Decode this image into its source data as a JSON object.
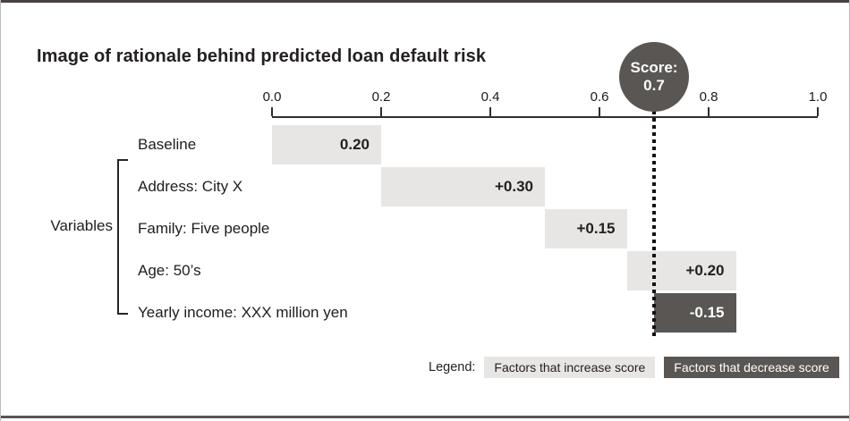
{
  "title": "Image of rationale behind predicted loan default risk",
  "variables_label": "Variables",
  "score_badge": {
    "label": "Score:",
    "value": "0.7"
  },
  "legend": {
    "label": "Legend:",
    "increase": "Factors that increase score",
    "decrease": "Factors that decrease score"
  },
  "colors": {
    "increase_bar": "#e7e6e4",
    "decrease_bar": "#5a5653",
    "dotted_line": "#161110",
    "text": "#262120"
  },
  "chart_data": {
    "type": "bar",
    "subtype": "waterfall",
    "title": "Image of rationale behind predicted loan default risk",
    "orientation": "horizontal",
    "axis": {
      "min": 0.0,
      "max": 1.0,
      "ticks": [
        0.0,
        0.2,
        0.4,
        0.6,
        0.8,
        1.0
      ]
    },
    "final_score": 0.7,
    "rows": [
      {
        "label": "Baseline",
        "display": "0.20",
        "value": 0.2,
        "start": 0.0,
        "end": 0.2,
        "kind": "increase",
        "group": "baseline"
      },
      {
        "label": "Address: City X",
        "display": "+0.30",
        "value": 0.3,
        "start": 0.2,
        "end": 0.5,
        "kind": "increase",
        "group": "variable"
      },
      {
        "label": "Family: Five people",
        "display": "+0.15",
        "value": 0.15,
        "start": 0.5,
        "end": 0.65,
        "kind": "increase",
        "group": "variable"
      },
      {
        "label": "Age: 50’s",
        "display": "+0.20",
        "value": 0.2,
        "start": 0.65,
        "end": 0.85,
        "kind": "increase",
        "group": "variable"
      },
      {
        "label": "Yearly income: XXX million yen",
        "display": "-0.15",
        "value": -0.15,
        "start": 0.85,
        "end": 0.7,
        "kind": "decrease",
        "group": "variable"
      }
    ],
    "legend_entries": [
      "Factors that increase score",
      "Factors that decrease score"
    ]
  }
}
